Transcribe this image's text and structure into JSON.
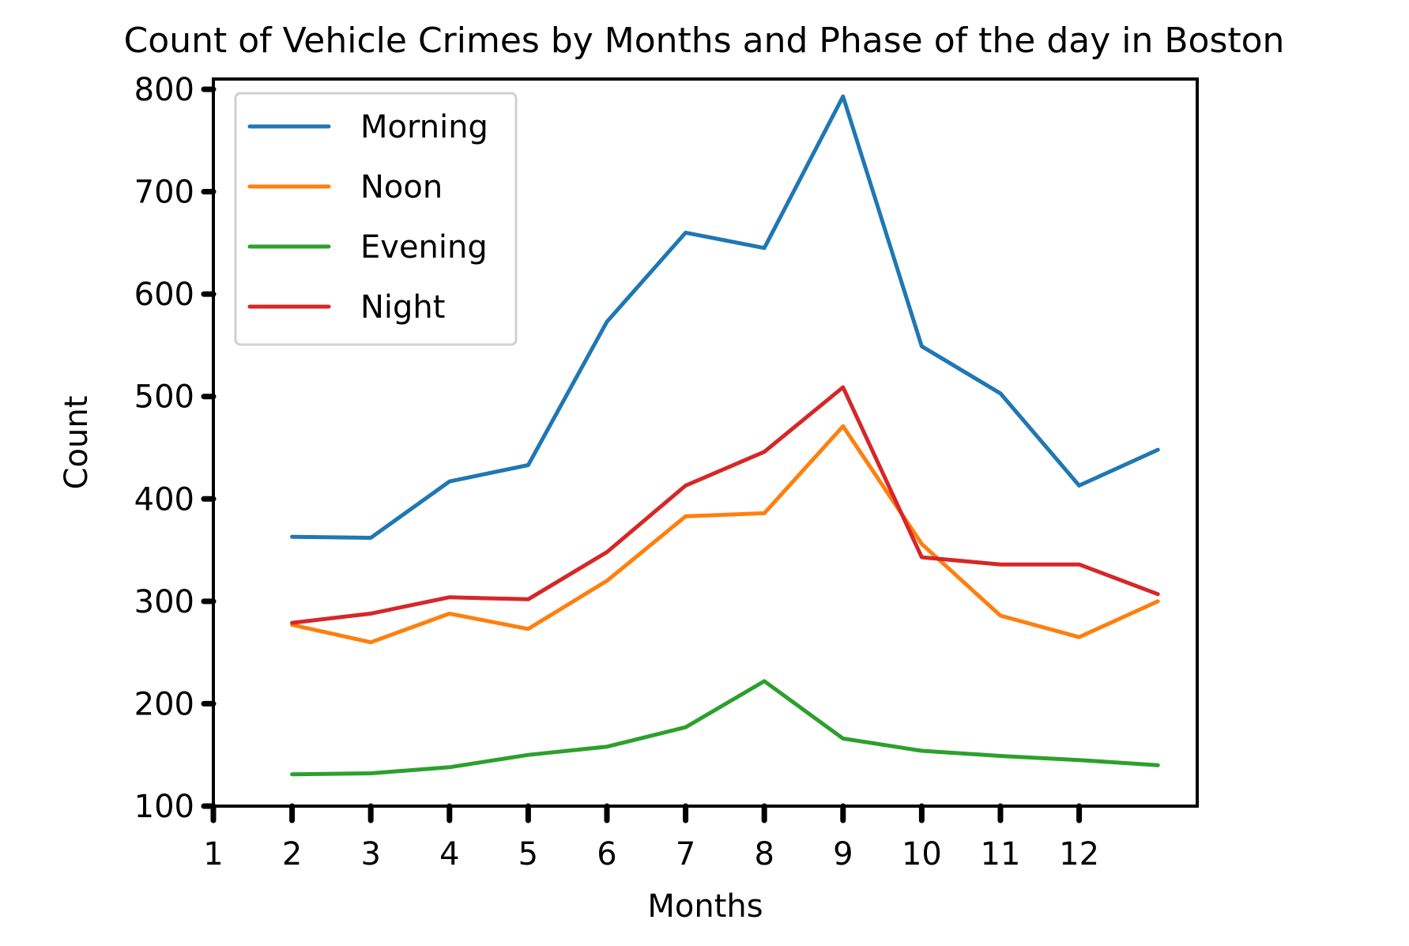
{
  "chart_data": {
    "type": "line",
    "title": "Count of Vehicle Crimes by Months and Phase of the day in Boston",
    "xlabel": "Months",
    "ylabel": "Count",
    "xlim": [
      1,
      13.5
    ],
    "ylim": [
      100,
      810
    ],
    "xticks": [
      1,
      2,
      3,
      4,
      5,
      6,
      7,
      8,
      9,
      10,
      11,
      12
    ],
    "yticks": [
      100,
      200,
      300,
      400,
      500,
      600,
      700,
      800
    ],
    "grid": false,
    "legend_position": "top-left",
    "x": [
      2,
      3,
      4,
      5,
      6,
      7,
      8,
      9,
      10,
      11,
      12,
      13
    ],
    "series": [
      {
        "name": "Morning",
        "color": "#1f77b4",
        "values": [
          363,
          362,
          417,
          433,
          573,
          660,
          645,
          793,
          549,
          503,
          413,
          448
        ]
      },
      {
        "name": "Noon",
        "color": "#ff7f0e",
        "values": [
          277,
          260,
          288,
          273,
          320,
          383,
          386,
          471,
          356,
          286,
          265,
          300
        ]
      },
      {
        "name": "Evening",
        "color": "#2ca02c",
        "values": [
          131,
          132,
          138,
          150,
          158,
          177,
          222,
          166,
          154,
          149,
          145,
          140
        ]
      },
      {
        "name": "Night",
        "color": "#d62728",
        "values": [
          279,
          288,
          304,
          302,
          348,
          413,
          446,
          509,
          343,
          336,
          336,
          307
        ]
      }
    ]
  }
}
